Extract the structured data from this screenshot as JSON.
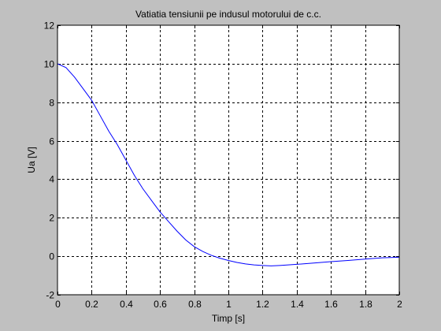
{
  "chart_data": {
    "type": "line",
    "title": "Vatiatia tensiunii pe indusul motorului de c.c.",
    "xlabel": "Timp [s]",
    "ylabel": "Ua [V]",
    "xlim": [
      0,
      2
    ],
    "ylim": [
      -2,
      12
    ],
    "xticks": [
      0,
      0.2,
      0.4,
      0.6,
      0.8,
      1,
      1.2,
      1.4,
      1.6,
      1.8,
      2
    ],
    "xtick_labels": [
      "0",
      "0.2",
      "0.4",
      "0.6",
      "0.8",
      "1",
      "1.2",
      "1.4",
      "1.6",
      "1.8",
      "2"
    ],
    "yticks": [
      -2,
      0,
      2,
      4,
      6,
      8,
      10,
      12
    ],
    "ytick_labels": [
      "-2",
      "0",
      "2",
      "4",
      "6",
      "8",
      "10",
      "12"
    ],
    "grid": true,
    "line_color": "#0000ff",
    "background_color": "#c0c0c0",
    "axes_color": "#ffffff",
    "series": [
      {
        "x": [
          0,
          0.05,
          0.1,
          0.15,
          0.2,
          0.25,
          0.3,
          0.35,
          0.4,
          0.45,
          0.5,
          0.55,
          0.6,
          0.65,
          0.7,
          0.75,
          0.8,
          0.85,
          0.9,
          0.95,
          1,
          1.05,
          1.1,
          1.15,
          1.2,
          1.25,
          1.3,
          1.35,
          1.4,
          1.5,
          1.6,
          1.7,
          1.8,
          1.9,
          2
        ],
        "y": [
          10,
          9.8,
          9.3,
          8.7,
          8.1,
          7.3,
          6.5,
          5.8,
          5.0,
          4.2,
          3.5,
          2.9,
          2.3,
          1.8,
          1.3,
          0.85,
          0.5,
          0.25,
          0.05,
          -0.1,
          -0.22,
          -0.32,
          -0.4,
          -0.45,
          -0.48,
          -0.5,
          -0.48,
          -0.45,
          -0.42,
          -0.35,
          -0.28,
          -0.22,
          -0.15,
          -0.08,
          -0.05
        ]
      }
    ]
  }
}
